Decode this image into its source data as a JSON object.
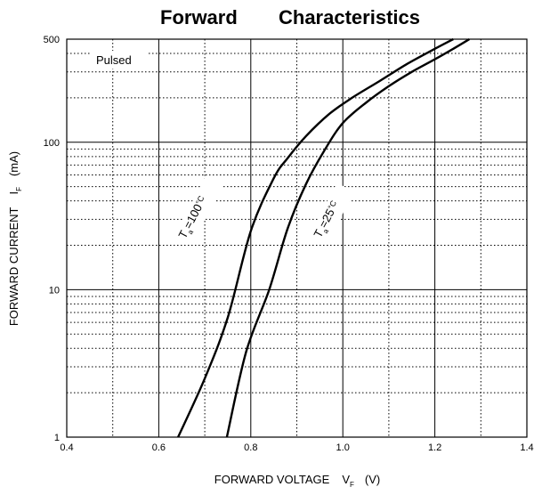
{
  "chart_data": {
    "type": "line",
    "title_left": "Forward",
    "title_right": "Characteristics",
    "xlabel": "FORWARD VOLTAGE",
    "xlabel_symbol": "V",
    "xlabel_subscript": "F",
    "xlabel_unit": "(V)",
    "ylabel": "FORWARD CURRENT",
    "ylabel_symbol": "I",
    "ylabel_subscript": "F",
    "ylabel_unit": "(mA)",
    "xlim": [
      0.4,
      1.4
    ],
    "ylim": [
      1,
      500
    ],
    "y_scale": "log",
    "grid": true,
    "x_ticks": [
      "0.4",
      "0.6",
      "0.8",
      "1.0",
      "1.2",
      "1.4"
    ],
    "y_ticks": [
      "1",
      "10",
      "100",
      "500"
    ],
    "annotation": "Pulsed",
    "series": [
      {
        "label_symbol": "T",
        "label_subscript": "a",
        "label_text": "=100",
        "label_unit": "°C",
        "x": [
          0.642,
          0.7,
          0.75,
          0.8,
          0.85,
          0.88,
          0.92,
          0.97,
          1.02,
          1.08,
          1.14,
          1.2,
          1.24
        ],
        "y": [
          1,
          2.5,
          6.5,
          25,
          57,
          78,
          110,
          155,
          200,
          260,
          340,
          430,
          500
        ]
      },
      {
        "label_symbol": "T",
        "label_subscript": "a",
        "label_text": "=25",
        "label_unit": "°C",
        "x": [
          0.748,
          0.79,
          0.84,
          0.88,
          0.92,
          0.96,
          1.0,
          1.05,
          1.1,
          1.15,
          1.2,
          1.24,
          1.275
        ],
        "y": [
          1,
          3.8,
          10,
          26,
          52,
          88,
          135,
          185,
          240,
          300,
          365,
          430,
          500
        ]
      }
    ]
  }
}
